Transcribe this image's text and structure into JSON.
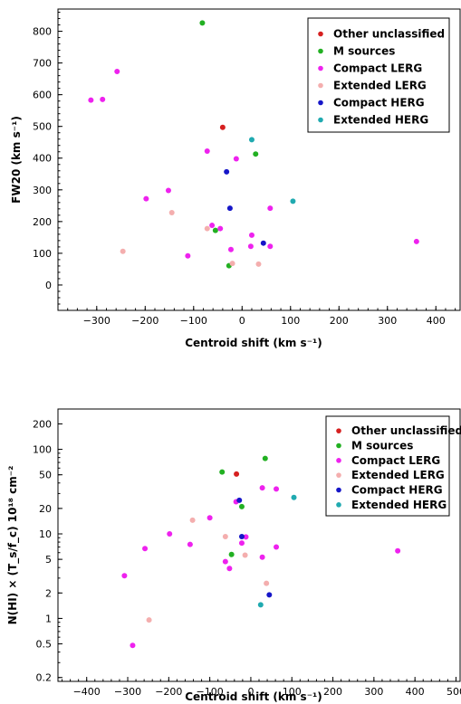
{
  "chart_data": [
    {
      "type": "scatter",
      "xlabel": "Centroid shift (km s⁻¹)",
      "ylabel": "FW20 (km s⁻¹)",
      "xlim": [
        -380,
        450
      ],
      "ylim": [
        -80,
        870
      ],
      "xticks": [
        -300,
        -200,
        -100,
        0,
        100,
        200,
        300,
        400
      ],
      "yticks": [
        0,
        100,
        200,
        300,
        400,
        500,
        600,
        700,
        800
      ],
      "legend_position": "top-right",
      "series": [
        {
          "name": "Other unclassified",
          "color": "#d62020",
          "points": [
            {
              "x": -40,
              "y": 497
            }
          ]
        },
        {
          "name": "M sources",
          "color": "#22b022",
          "points": [
            {
              "x": -82,
              "y": 826
            },
            {
              "x": 28,
              "y": 413
            },
            {
              "x": -55,
              "y": 172
            },
            {
              "x": -27,
              "y": 61
            }
          ]
        },
        {
          "name": "Compact LERG",
          "color": "#ee22ee",
          "points": [
            {
              "x": -258,
              "y": 673
            },
            {
              "x": -312,
              "y": 583
            },
            {
              "x": -288,
              "y": 585
            },
            {
              "x": -72,
              "y": 422
            },
            {
              "x": -12,
              "y": 398
            },
            {
              "x": -152,
              "y": 298
            },
            {
              "x": -198,
              "y": 272
            },
            {
              "x": 58,
              "y": 242
            },
            {
              "x": -62,
              "y": 188
            },
            {
              "x": -45,
              "y": 178
            },
            {
              "x": 20,
              "y": 157
            },
            {
              "x": -23,
              "y": 112
            },
            {
              "x": 18,
              "y": 122
            },
            {
              "x": 58,
              "y": 122
            },
            {
              "x": -112,
              "y": 92
            },
            {
              "x": 360,
              "y": 137
            }
          ]
        },
        {
          "name": "Extended LERG",
          "color": "#f4aeae",
          "points": [
            {
              "x": -145,
              "y": 228
            },
            {
              "x": -246,
              "y": 106
            },
            {
              "x": -72,
              "y": 178
            },
            {
              "x": -20,
              "y": 68
            },
            {
              "x": 34,
              "y": 66
            }
          ]
        },
        {
          "name": "Compact HERG",
          "color": "#1616c8",
          "points": [
            {
              "x": -32,
              "y": 357
            },
            {
              "x": -25,
              "y": 242
            },
            {
              "x": 44,
              "y": 132
            }
          ]
        },
        {
          "name": "Extended HERG",
          "color": "#20aab0",
          "points": [
            {
              "x": 20,
              "y": 458
            },
            {
              "x": 105,
              "y": 264
            }
          ]
        }
      ]
    },
    {
      "type": "scatter",
      "xlabel": "Centroid shift (km s⁻¹)",
      "ylabel": "N(HI) × (T_s/f_c) 10¹⁸ cm⁻²",
      "xlim": [
        -470,
        510
      ],
      "ylim": [
        0.18,
        300
      ],
      "y_scale": "log",
      "xticks": [
        -400,
        -300,
        -200,
        -100,
        0,
        100,
        200,
        300,
        400,
        500
      ],
      "yticks": [
        0.2,
        0.5,
        1,
        2,
        5,
        10,
        20,
        50,
        100,
        200
      ],
      "legend_position": "top-right",
      "series": [
        {
          "name": "Other unclassified",
          "color": "#d62020",
          "points": [
            {
              "x": -35,
              "y": 51
            }
          ]
        },
        {
          "name": "M sources",
          "color": "#22b022",
          "points": [
            {
              "x": 35,
              "y": 78
            },
            {
              "x": -70,
              "y": 54
            },
            {
              "x": -22,
              "y": 21
            },
            {
              "x": -47,
              "y": 5.7
            }
          ]
        },
        {
          "name": "Compact LERG",
          "color": "#ee22ee",
          "points": [
            {
              "x": 28,
              "y": 35
            },
            {
              "x": 62,
              "y": 34
            },
            {
              "x": -36,
              "y": 24
            },
            {
              "x": -100,
              "y": 15.5
            },
            {
              "x": -198,
              "y": 10
            },
            {
              "x": -258,
              "y": 6.7
            },
            {
              "x": -148,
              "y": 7.5
            },
            {
              "x": -12,
              "y": 9.2
            },
            {
              "x": -22,
              "y": 7.8
            },
            {
              "x": -62,
              "y": 4.7
            },
            {
              "x": -52,
              "y": 3.9
            },
            {
              "x": 28,
              "y": 5.3
            },
            {
              "x": 62,
              "y": 7
            },
            {
              "x": -308,
              "y": 3.2
            },
            {
              "x": -288,
              "y": 0.48
            },
            {
              "x": 358,
              "y": 6.3
            }
          ]
        },
        {
          "name": "Extended LERG",
          "color": "#f4aeae",
          "points": [
            {
              "x": -142,
              "y": 14.5
            },
            {
              "x": -62,
              "y": 9.3
            },
            {
              "x": -14,
              "y": 5.6
            },
            {
              "x": 38,
              "y": 2.6
            },
            {
              "x": -248,
              "y": 0.96
            }
          ]
        },
        {
          "name": "Compact HERG",
          "color": "#1616c8",
          "points": [
            {
              "x": -28,
              "y": 25
            },
            {
              "x": -22,
              "y": 9.3
            },
            {
              "x": 45,
              "y": 1.9
            }
          ]
        },
        {
          "name": "Extended HERG",
          "color": "#20aab0",
          "points": [
            {
              "x": 105,
              "y": 27
            },
            {
              "x": 24,
              "y": 1.45
            }
          ]
        }
      ]
    }
  ]
}
